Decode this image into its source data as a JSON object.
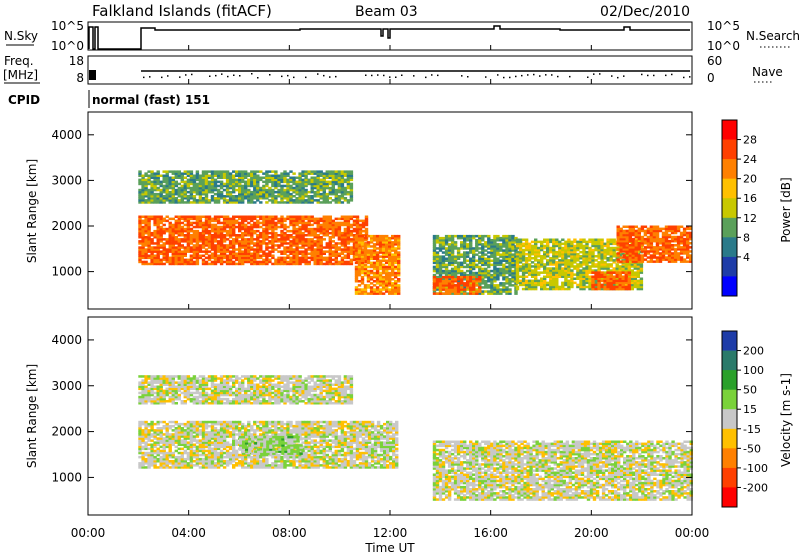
{
  "header": {
    "station": "Falkland Islands (fitACF)",
    "beam": "Beam 03",
    "date": "02/Dec/2010"
  },
  "top_panels": {
    "nsky": {
      "label": "N.Sky",
      "ticks": [
        "10^5",
        "10^0"
      ]
    },
    "nsearch": {
      "label": "N.Search",
      "ticks": [
        "10^5",
        "10^0"
      ]
    },
    "freq": {
      "label_line1": "Freq.",
      "label_line2": "[MHz]",
      "ticks": [
        "18",
        "8"
      ]
    },
    "nave": {
      "label": "Nave",
      "ticks": [
        "60",
        "0"
      ]
    },
    "cpid": {
      "label": "CPID",
      "mode": "normal (fast) 151"
    }
  },
  "x_axis": {
    "label": "Time UT",
    "ticks": [
      "00:00",
      "04:00",
      "08:00",
      "12:00",
      "16:00",
      "20:00",
      "00:00"
    ]
  },
  "power_panel": {
    "y_label": "Slant Range [km]",
    "y_ticks": [
      "4000",
      "3000",
      "2000",
      "1000"
    ],
    "colorbar_label": "Power [dB]",
    "colorbar_ticks": [
      "28",
      "24",
      "20",
      "16",
      "12",
      "8",
      "4"
    ],
    "colors": [
      "#ff0000",
      "#ff4000",
      "#ff8000",
      "#ffc000",
      "#c8c800",
      "#5aa05a",
      "#2a7a8a",
      "#1e3ca8",
      "#0000ff"
    ]
  },
  "velocity_panel": {
    "y_label": "Slant Range [km]",
    "y_ticks": [
      "4000",
      "3000",
      "2000",
      "1000"
    ],
    "colorbar_label": "Velocity [m s-1]",
    "colorbar_ticks": [
      "200",
      "100",
      "50",
      "15",
      "-15",
      "-50",
      "-100",
      "-200"
    ],
    "colors": [
      "#1e3ca8",
      "#2a7a6a",
      "#2aa02a",
      "#7ad23a",
      "#c8c8c8",
      "#ffc000",
      "#ff8000",
      "#ff4000",
      "#ff0000"
    ]
  },
  "chart_data": [
    {
      "type": "heatmap",
      "quantity": "Power",
      "unit": "dB",
      "x_range_hours": [
        0,
        24
      ],
      "y_range_km": [
        180,
        4500
      ],
      "color_range": [
        0,
        32
      ],
      "echo_bands": [
        {
          "t0": 2.0,
          "t1": 11.0,
          "r0": 1150,
          "r1": 2200,
          "level": 26
        },
        {
          "t0": 2.0,
          "t1": 10.5,
          "r0": 2500,
          "r1": 3200,
          "level": 12
        },
        {
          "t0": 10.6,
          "t1": 12.3,
          "r0": 500,
          "r1": 1800,
          "level": 24
        },
        {
          "t0": 13.7,
          "t1": 17.0,
          "r0": 500,
          "r1": 1800,
          "level": 12
        },
        {
          "t0": 13.7,
          "t1": 15.5,
          "r0": 500,
          "r1": 900,
          "level": 26
        },
        {
          "t0": 17.0,
          "t1": 22.0,
          "r0": 600,
          "r1": 1700,
          "level": 16
        },
        {
          "t0": 20.0,
          "t1": 21.5,
          "r0": 600,
          "r1": 1000,
          "level": 26
        },
        {
          "t0": 21.0,
          "t1": 24.0,
          "r0": 1200,
          "r1": 2000,
          "level": 26
        }
      ]
    },
    {
      "type": "heatmap",
      "quantity": "Velocity",
      "unit": "m s-1",
      "x_range_hours": [
        0,
        24
      ],
      "y_range_km": [
        180,
        4500
      ],
      "color_range": [
        -250,
        250
      ],
      "echo_bands": [
        {
          "t0": 2.0,
          "t1": 12.3,
          "r0": 1200,
          "r1": 2200,
          "level": 0
        },
        {
          "t0": 2.0,
          "t1": 10.5,
          "r0": 2600,
          "r1": 3200,
          "level": 0
        },
        {
          "t0": 13.7,
          "t1": 24.0,
          "r0": 500,
          "r1": 1800,
          "level": 0
        },
        {
          "t0": 6.0,
          "t1": 8.5,
          "r0": 1500,
          "r1": 1900,
          "level": 40
        }
      ]
    }
  ]
}
